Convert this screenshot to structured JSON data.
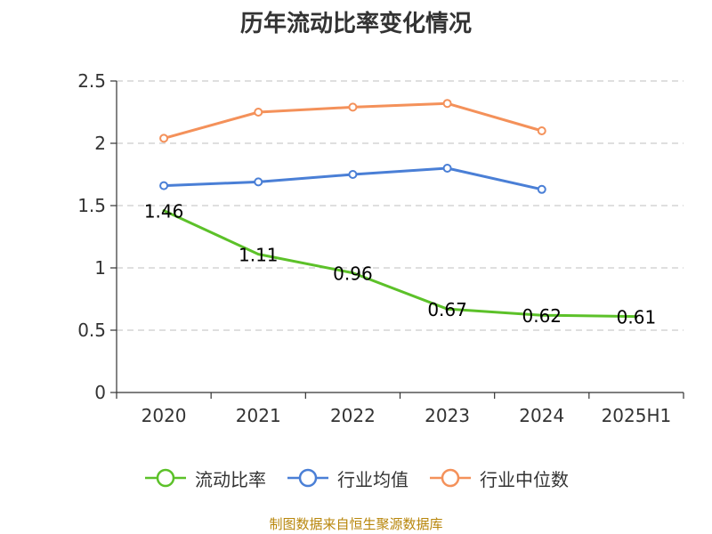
{
  "title": "历年流动比率变化情况",
  "source": "制图数据来自恒生聚源数据库",
  "chart_data": {
    "type": "line",
    "title": "历年流动比率变化情况",
    "categories": [
      "2020",
      "2021",
      "2022",
      "2023",
      "2024",
      "2025H1"
    ],
    "ylim": [
      0,
      2.5
    ],
    "yticks": [
      "0",
      "0.5",
      "1",
      "1.5",
      "2",
      "2.5"
    ],
    "grid": true,
    "legend_position": "bottom",
    "series": [
      {
        "name": "流动比率",
        "color": "#5cc129",
        "values": [
          1.46,
          1.11,
          0.96,
          0.67,
          0.62,
          0.61
        ],
        "labels": [
          "1.46",
          "1.11",
          "0.96",
          "0.67",
          "0.62",
          "0.61"
        ],
        "show_markers": false
      },
      {
        "name": "行业均值",
        "color": "#4a7fd6",
        "values": [
          1.66,
          1.69,
          1.75,
          1.8,
          1.63,
          null
        ],
        "show_markers": true
      },
      {
        "name": "行业中位数",
        "color": "#f4915a",
        "values": [
          2.04,
          2.25,
          2.29,
          2.32,
          2.1,
          null
        ],
        "show_markers": true
      }
    ]
  }
}
